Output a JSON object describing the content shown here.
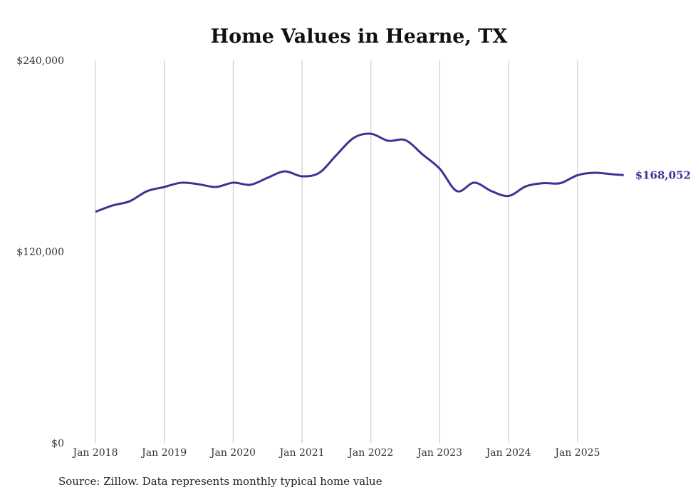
{
  "chart_data": {
    "type": "line",
    "title": "Home Values in Hearne, TX",
    "xlabel": "",
    "ylabel": "",
    "ylim": [
      0,
      240000
    ],
    "xlim": [
      2018,
      2025.67
    ],
    "y_ticks": [
      0,
      120000,
      240000
    ],
    "y_tick_labels": [
      "$0",
      "$120,000",
      "$240,000"
    ],
    "x_ticks": [
      2018,
      2019,
      2020,
      2021,
      2022,
      2023,
      2024,
      2025
    ],
    "x_tick_labels": [
      "Jan 2018",
      "Jan 2019",
      "Jan 2020",
      "Jan 2021",
      "Jan 2022",
      "Jan 2023",
      "Jan 2024",
      "Jan 2025"
    ],
    "grid": "vertical",
    "series": [
      {
        "name": "Typical home value",
        "color": "#3b3494",
        "x": [
          2018,
          2018.25,
          2018.5,
          2018.75,
          2019,
          2019.25,
          2019.5,
          2019.75,
          2020,
          2020.25,
          2020.5,
          2020.75,
          2021,
          2021.25,
          2021.5,
          2021.75,
          2022,
          2022.25,
          2022.5,
          2022.75,
          2023,
          2023.25,
          2023.5,
          2023.75,
          2024,
          2024.25,
          2024.5,
          2024.75,
          2025,
          2025.25,
          2025.5,
          2025.67
        ],
        "values": [
          145000,
          149000,
          151700,
          158000,
          160600,
          163300,
          162300,
          160600,
          163300,
          162000,
          166400,
          170400,
          167300,
          169500,
          180700,
          191400,
          194000,
          189600,
          190000,
          181000,
          172000,
          158000,
          163300,
          158000,
          155000,
          161000,
          163000,
          163000,
          168000,
          169500,
          168600,
          168052
        ]
      }
    ],
    "end_label": "$168,052"
  },
  "source": "Source: Zillow. Data represents monthly typical home value"
}
